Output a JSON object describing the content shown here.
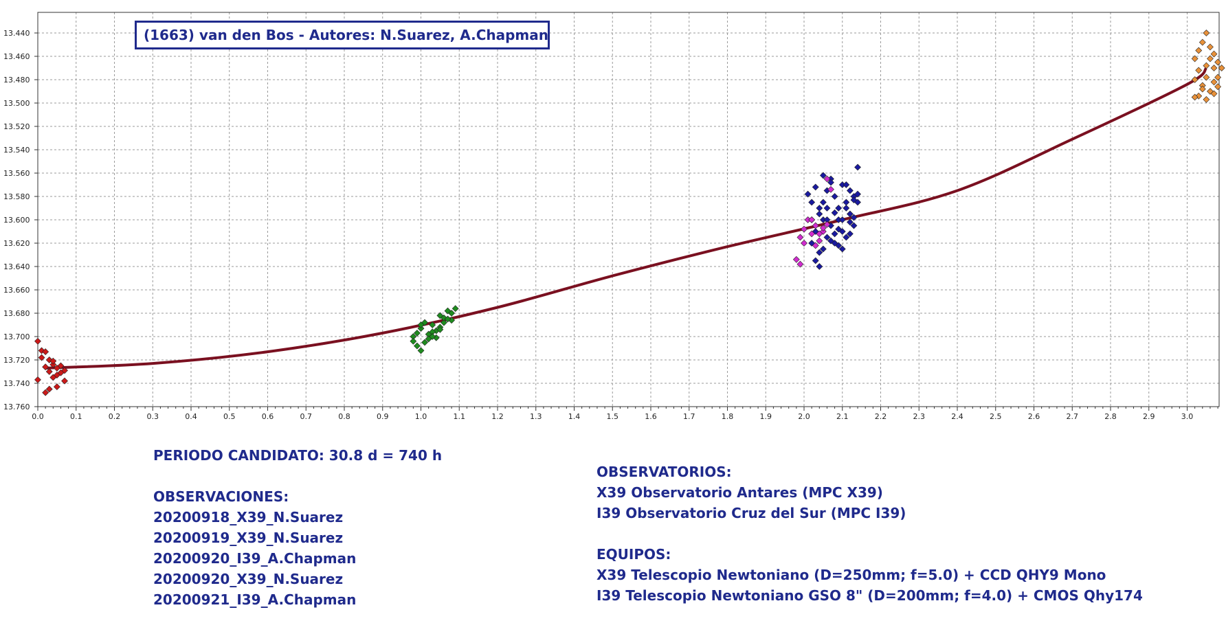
{
  "title": "(1663) van den Bos - Autores: N.Suarez, A.Chapman",
  "colors": {
    "text": "#1f2a8c",
    "fit_line": "#7a1020",
    "grid": "#999999"
  },
  "info": {
    "period": "PERIODO CANDIDATO: 30.8 d = 740 h",
    "observations_heading": "OBSERVACIONES:",
    "observations": [
      "20200918_X39_N.Suarez",
      "20200919_X39_N.Suarez",
      "20200920_I39_A.Chapman",
      "20200920_X39_N.Suarez",
      "20200921_I39_A.Chapman"
    ],
    "observatories_heading": "OBSERVATORIOS:",
    "observatories": [
      "X39 Observatorio Antares (MPC X39)",
      "I39 Observatorio Cruz del Sur (MPC I39)"
    ],
    "equipment_heading": "EQUIPOS:",
    "equipment": [
      "X39 Telescopio Newtoniano (D=250mm; f=5.0) + CCD QHY9 Mono",
      "I39 Telescopio Newtoniano GSO 8\" (D=200mm; f=4.0) + CMOS Qhy174"
    ]
  },
  "chart_data": {
    "type": "scatter",
    "xlim": [
      0.0,
      3.09
    ],
    "ylim": [
      13.43,
      13.76
    ],
    "y_inverted": true,
    "grid": true,
    "x_ticks": [
      "0.0",
      "0.1",
      "0.2",
      "0.3",
      "0.4",
      "0.5",
      "0.6",
      "0.7",
      "0.8",
      "0.9",
      "1.0",
      "1.1",
      "1.2",
      "1.3",
      "1.4",
      "1.5",
      "1.6",
      "1.7",
      "1.8",
      "1.9",
      "2.0",
      "2.1",
      "2.2",
      "2.3",
      "2.4",
      "2.5",
      "2.6",
      "2.7",
      "2.8",
      "2.9",
      "3.0"
    ],
    "y_ticks": [
      "13.440",
      "13.460",
      "13.480",
      "13.500",
      "13.520",
      "13.540",
      "13.560",
      "13.580",
      "13.600",
      "13.620",
      "13.640",
      "13.660",
      "13.680",
      "13.700",
      "13.720",
      "13.740",
      "13.760"
    ],
    "fit_curve": {
      "x": [
        0.02,
        0.3,
        0.6,
        0.9,
        1.2,
        1.5,
        1.8,
        2.1,
        2.4,
        2.7,
        3.0,
        3.05
      ],
      "y": [
        13.727,
        13.723,
        13.713,
        13.697,
        13.675,
        13.648,
        13.623,
        13.6,
        13.575,
        13.531,
        13.484,
        13.47
      ]
    },
    "series": [
      {
        "color": "#cc1a1a",
        "x": [
          0.0,
          0.01,
          0.02,
          0.03,
          0.04,
          0.05,
          0.06,
          0.07,
          0.01,
          0.03,
          0.05,
          0.02,
          0.04,
          0.06,
          0.0,
          0.03,
          0.05,
          0.07,
          0.02,
          0.04
        ],
        "y": [
          13.704,
          13.712,
          13.713,
          13.72,
          13.724,
          13.727,
          13.725,
          13.729,
          13.718,
          13.73,
          13.733,
          13.726,
          13.735,
          13.731,
          13.737,
          13.745,
          13.743,
          13.738,
          13.748,
          13.721
        ]
      },
      {
        "color": "#1f8c1f",
        "x": [
          0.98,
          0.99,
          1.0,
          1.01,
          1.02,
          1.03,
          1.04,
          1.05,
          1.06,
          1.07,
          1.08,
          1.09,
          0.99,
          1.0,
          1.02,
          1.03,
          1.05,
          1.06,
          1.01,
          1.04,
          1.07,
          0.98,
          1.0,
          1.03,
          1.05,
          1.08
        ],
        "y": [
          13.7,
          13.697,
          13.693,
          13.705,
          13.698,
          13.69,
          13.695,
          13.682,
          13.688,
          13.678,
          13.686,
          13.676,
          13.708,
          13.712,
          13.702,
          13.696,
          13.692,
          13.684,
          13.688,
          13.701,
          13.685,
          13.704,
          13.69,
          13.7,
          13.694,
          13.68
        ]
      },
      {
        "color": "#1a1aa0",
        "x": [
          2.01,
          2.02,
          2.03,
          2.04,
          2.05,
          2.06,
          2.07,
          2.08,
          2.09,
          2.1,
          2.11,
          2.12,
          2.13,
          2.14,
          2.02,
          2.03,
          2.04,
          2.05,
          2.06,
          2.07,
          2.08,
          2.09,
          2.1,
          2.11,
          2.12,
          2.13,
          2.14,
          2.03,
          2.05,
          2.07,
          2.09,
          2.11,
          2.13,
          2.02,
          2.04,
          2.06,
          2.08,
          2.1,
          2.12,
          2.14,
          2.05,
          2.07,
          2.09,
          2.11,
          2.13,
          2.04,
          2.06,
          2.08,
          2.1,
          2.12
        ],
        "y": [
          13.578,
          13.585,
          13.572,
          13.59,
          13.6,
          13.575,
          13.565,
          13.58,
          13.6,
          13.57,
          13.585,
          13.595,
          13.58,
          13.555,
          13.6,
          13.61,
          13.595,
          13.585,
          13.59,
          13.605,
          13.612,
          13.622,
          13.61,
          13.59,
          13.575,
          13.583,
          13.578,
          13.635,
          13.625,
          13.618,
          13.608,
          13.615,
          13.598,
          13.62,
          13.628,
          13.6,
          13.594,
          13.625,
          13.602,
          13.585,
          13.562,
          13.568,
          13.59,
          13.57,
          13.605,
          13.64,
          13.615,
          13.62,
          13.6,
          13.612
        ]
      },
      {
        "color": "#d22ccf",
        "x": [
          1.98,
          1.99,
          2.0,
          2.01,
          2.02,
          2.03,
          2.04,
          2.05,
          2.06,
          2.07,
          2.0,
          2.02,
          2.04,
          2.06,
          1.99,
          2.03,
          2.05
        ],
        "y": [
          13.634,
          13.615,
          13.608,
          13.6,
          13.612,
          13.605,
          13.618,
          13.61,
          13.565,
          13.574,
          13.62,
          13.6,
          13.612,
          13.604,
          13.638,
          13.622,
          13.607
        ]
      },
      {
        "color": "#e8913a",
        "x": [
          3.02,
          3.03,
          3.04,
          3.05,
          3.06,
          3.07,
          3.08,
          3.09,
          3.03,
          3.05,
          3.07,
          3.02,
          3.04,
          3.06,
          3.08,
          3.03,
          3.05,
          3.07,
          3.04,
          3.06,
          3.08,
          3.05,
          3.02,
          3.07
        ],
        "y": [
          13.462,
          13.455,
          13.448,
          13.44,
          13.452,
          13.458,
          13.465,
          13.47,
          13.472,
          13.478,
          13.47,
          13.48,
          13.485,
          13.49,
          13.478,
          13.494,
          13.497,
          13.492,
          13.488,
          13.462,
          13.486,
          13.468,
          13.495,
          13.482
        ]
      }
    ]
  }
}
